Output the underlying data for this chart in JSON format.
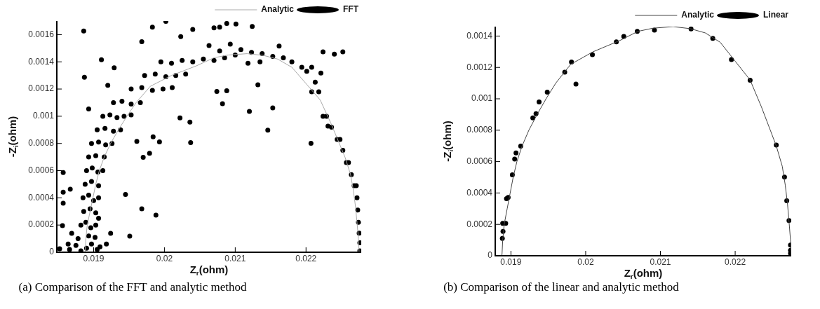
{
  "chart_data": [
    {
      "type": "scatter",
      "xlabel": "Z$_{r}$(ohm)",
      "ylabel": "-Z$_{i}$(ohm)",
      "xlim": [
        0.01848,
        0.02278
      ],
      "ylim": [
        0,
        0.0017
      ],
      "xticks": [
        0.019,
        0.02,
        0.021,
        0.022
      ],
      "yticks": [
        0,
        0.0002,
        0.0004,
        0.0006,
        0.0008,
        0.001,
        0.0012,
        0.0014,
        0.0016
      ],
      "legend": "top right",
      "annotations": [
        "(a) Comparison of the FFT and analytic method"
      ],
      "series": [
        {
          "name": "Analytic",
          "type": "line",
          "marker": "none",
          "color": "#aaaaaa",
          "x": [
            0.01888,
            0.01889,
            0.01891,
            0.01895,
            0.01899,
            0.01903,
            0.01908,
            0.01915,
            0.01924,
            0.01935,
            0.01947,
            0.0196,
            0.0198,
            0.0201,
            0.02045,
            0.0207,
            0.0209,
            0.02117,
            0.0214,
            0.0216,
            0.0218,
            0.022,
            0.0222,
            0.02235,
            0.02247,
            0.02255,
            0.02263,
            0.02267,
            0.0227,
            0.02272,
            0.02274,
            0.02275
          ],
          "values": [
            0,
            0.0001,
            0.0002,
            0.0003,
            0.0004,
            0.0005,
            0.0006,
            0.0007,
            0.0008,
            0.0009,
            0.001,
            0.0011,
            0.00122,
            0.0013,
            0.00137,
            0.00143,
            0.00145,
            0.00146,
            0.001447,
            0.00142,
            0.00136,
            0.00124,
            0.00112,
            0.00095,
            0.0008,
            0.0007,
            0.00057,
            0.00045,
            0.00033,
            0.00022,
            0.0001,
            0
          ]
        },
        {
          "name": "FFT",
          "type": "scatter",
          "marker": "circle",
          "color": "#000000",
          "x": [
            0.01866,
            0.01875,
            0.01882,
            0.0189,
            0.01897,
            0.01905,
            0.01909,
            0.01878,
            0.01893,
            0.01902,
            0.01882,
            0.01889,
            0.01896,
            0.01903,
            0.01907,
            0.01886,
            0.01895,
            0.01903,
            0.01885,
            0.01893,
            0.019,
            0.01907,
            0.01888,
            0.01897,
            0.01907,
            0.0189,
            0.01898,
            0.01906,
            0.01913,
            0.01893,
            0.01903,
            0.01915,
            0.01897,
            0.01907,
            0.01917,
            0.01926,
            0.01905,
            0.01916,
            0.01928,
            0.01938,
            0.01913,
            0.01923,
            0.01933,
            0.01943,
            0.01953,
            0.01928,
            0.0194,
            0.01953,
            0.01966,
            0.01953,
            0.01968,
            0.01983,
            0.01998,
            0.02011,
            0.01972,
            0.01987,
            0.02002,
            0.02016,
            0.0203,
            0.01995,
            0.0201,
            0.02025,
            0.0204,
            0.02055,
            0.0207,
            0.02085,
            0.021,
            0.02063,
            0.02078,
            0.02093,
            0.02108,
            0.02123,
            0.02138,
            0.02153,
            0.02168,
            0.0218,
            0.02118,
            0.02135,
            0.02194,
            0.02201,
            0.02208,
            0.02208,
            0.02213,
            0.02218,
            0.02224,
            0.02229,
            0.02236,
            0.02244,
            0.02248,
            0.02252,
            0.02257,
            0.0226,
            0.02264,
            0.02268,
            0.02271,
            0.02272,
            0.02273,
            0.02274,
            0.02275,
            0.02276,
            0.02276,
            0.01886,
            0.01887,
            0.01911,
            0.01929,
            0.01968,
            0.01983,
            0.02002,
            0.02023,
            0.0204,
            0.02078,
            0.01945,
            0.01968,
            0.01988,
            0.01951,
            0.02037,
            0.02036,
            0.02022,
            0.01979,
            0.0197,
            0.01993,
            0.01984,
            0.01961,
            0.0192,
            0.01893,
            0.01857,
            0.01857,
            0.01856,
            0.01857,
            0.01867,
            0.01869,
            0.01852,
            0.01864,
            0.01924,
            0.01918,
            0.02252,
            0.0224,
            0.02224,
            0.0212,
            0.02146,
            0.02153,
            0.02207,
            0.02132,
            0.02082,
            0.02088,
            0.02074,
            0.02162,
            0.0207,
            0.02088,
            0.02101,
            0.02124,
            0.02221,
            0.02231
          ],
          "values": [
            2e-05,
            5e-05,
            1e-05,
            3e-05,
            6e-05,
            2e-05,
            4e-05,
            0.0001,
            0.00012,
            0.00011,
            0.0002,
            0.00022,
            0.00018,
            0.0002,
            0.00025,
            0.0003,
            0.00032,
            0.00029,
            0.0004,
            0.00042,
            0.00038,
            0.0004,
            0.0005,
            0.00052,
            0.00049,
            0.0006,
            0.00062,
            0.00059,
            0.0006,
            0.0007,
            0.00071,
            0.0007,
            0.0008,
            0.00081,
            0.00079,
            0.0008,
            0.0009,
            0.00091,
            0.00089,
            0.0009,
            0.001,
            0.00101,
            0.00099,
            0.001,
            0.00101,
            0.0011,
            0.00111,
            0.00109,
            0.0011,
            0.0012,
            0.00121,
            0.00119,
            0.0012,
            0.00121,
            0.0013,
            0.00131,
            0.00129,
            0.0013,
            0.00131,
            0.0014,
            0.00139,
            0.00141,
            0.0014,
            0.00142,
            0.00141,
            0.00143,
            0.00145,
            0.00152,
            0.00148,
            0.00153,
            0.00149,
            0.00147,
            0.00146,
            0.00144,
            0.00143,
            0.0014,
            0.00139,
            0.0014,
            0.00136,
            0.00133,
            0.00136,
            0.00118,
            0.00125,
            0.00118,
            0.001,
            0.001,
            0.00092,
            0.00083,
            0.00083,
            0.00075,
            0.00066,
            0.00066,
            0.00057,
            0.00049,
            0.00049,
            0.0004,
            0.00031,
            0.00022,
            0.00014,
            7e-05,
            1e-05,
            0.001626,
            0.001286,
            0.001416,
            0.001356,
            0.001548,
            0.001655,
            0.001698,
            0.001586,
            0.001638,
            0.001655,
            0.000425,
            0.00032,
            0.000273,
            0.000118,
            0.000806,
            0.000957,
            0.000988,
            0.000728,
            0.000698,
            0.000811,
            0.000849,
            0.000815,
            0.001227,
            0.001054,
            0.000586,
            0.000442,
            0.000196,
            0.00036,
            0.000464,
            0.000139,
            2.6e-05,
            6.1e-05,
            0.000139,
            6.1e-05,
            0.001473,
            0.001456,
            0.001473,
            0.001035,
            0.000898,
            0.001061,
            0.000801,
            0.001231,
            0.001092,
            0.001187,
            0.001182,
            0.001516,
            0.00165,
            0.001682,
            0.001678,
            0.00166,
            0.001317,
            0.000927
          ]
        }
      ]
    },
    {
      "type": "scatter",
      "xlabel": "Z$_{r}$(ohm)",
      "ylabel": "-Z$_{i}$(ohm)",
      "xlim": [
        0.01879,
        0.02275
      ],
      "ylim": [
        0,
        0.00146
      ],
      "xticks": [
        0.019,
        0.02,
        0.021,
        0.022
      ],
      "yticks": [
        0,
        0.0002,
        0.0004,
        0.0006,
        0.0008,
        0.001,
        0.0012,
        0.0014
      ],
      "legend": "top right",
      "annotations": [
        "(b) Comparison of the linear and analytic method"
      ],
      "series": [
        {
          "name": "Analytic",
          "type": "line",
          "marker": "none",
          "color": "#444444",
          "x": [
            0.01888,
            0.01889,
            0.01891,
            0.01895,
            0.01899,
            0.01903,
            0.01908,
            0.01915,
            0.01924,
            0.01935,
            0.01947,
            0.0196,
            0.0198,
            0.0201,
            0.02045,
            0.0207,
            0.0209,
            0.02117,
            0.0214,
            0.0216,
            0.0218,
            0.022,
            0.0222,
            0.02235,
            0.02247,
            0.02255,
            0.02263,
            0.02267,
            0.0227,
            0.02272,
            0.02274,
            0.02275
          ],
          "values": [
            0,
            0.0001,
            0.0002,
            0.0003,
            0.0004,
            0.0005,
            0.0006,
            0.0007,
            0.0008,
            0.0009,
            0.001,
            0.0011,
            0.00122,
            0.0013,
            0.00137,
            0.00143,
            0.00145,
            0.00146,
            0.001447,
            0.00142,
            0.00136,
            0.00124,
            0.00112,
            0.00095,
            0.0008,
            0.0007,
            0.00057,
            0.00045,
            0.00033,
            0.00022,
            0.0001,
            0
          ]
        },
        {
          "name": "Linear",
          "type": "scatter",
          "marker": "circle",
          "color": "#000000",
          "x": [
            0.018885,
            0.018894,
            0.01889,
            0.01893,
            0.018941,
            0.018963,
            0.019019,
            0.01905,
            0.019068,
            0.019131,
            0.019293,
            0.019336,
            0.019377,
            0.019486,
            0.01972,
            0.01981,
            0.01987,
            0.02009,
            0.02041,
            0.02051,
            0.02069,
            0.02092,
            0.02141,
            0.0217,
            0.02195,
            0.0222,
            0.02255,
            0.02266,
            0.02269,
            0.02272,
            0.02274,
            0.02274,
            0.02274
          ],
          "values": [
            0.00011,
            0.000155,
            0.000206,
            0.000206,
            0.000364,
            0.000372,
            0.000516,
            0.000616,
            0.000655,
            0.000699,
            0.000879,
            0.000905,
            0.00098,
            0.001043,
            0.00117,
            0.001234,
            0.001094,
            0.001281,
            0.001363,
            0.001397,
            0.00143,
            0.001438,
            0.001445,
            0.001385,
            0.00125,
            0.001119,
            0.000705,
            0.000501,
            0.000351,
            0.000224,
            6.8e-05,
            3.5e-05,
            1.5e-05
          ]
        }
      ]
    }
  ]
}
